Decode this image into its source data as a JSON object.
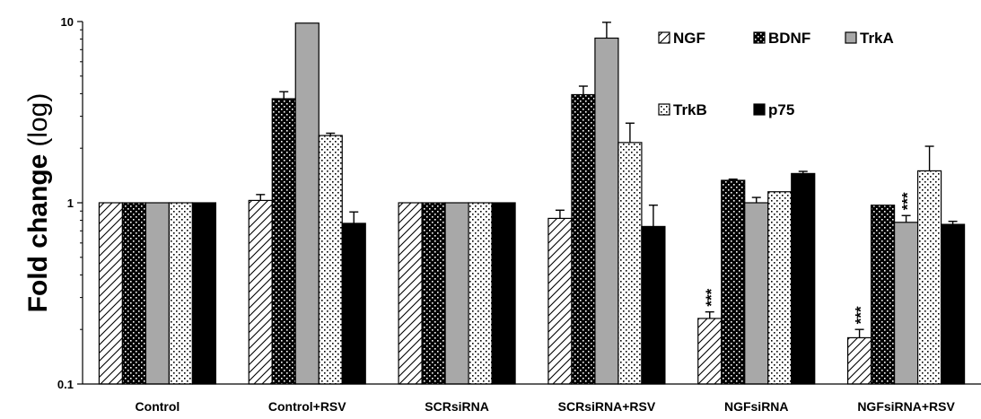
{
  "chart_data": {
    "type": "bar",
    "title": "",
    "xlabel": "",
    "ylabel": "Fold change",
    "ylabel_suffix": "(log)",
    "y_scale": "log",
    "ylim": [
      0.1,
      10
    ],
    "y_ticks": [
      "0.1",
      "1",
      "10"
    ],
    "grid": false,
    "legend_position": "top-right",
    "categories": [
      "Control",
      "Control+RSV",
      "SCRsiRNA",
      "SCRsiRNA+RSV",
      "NGFsiRNA",
      "NGFsiRNA+RSV"
    ],
    "series": [
      {
        "name": "NGF",
        "pattern": "hatch",
        "values": [
          1.0,
          1.03,
          1.0,
          0.82,
          0.23,
          0.18
        ],
        "errors": [
          0,
          0.08,
          0,
          0.09,
          0.02,
          0.02
        ]
      },
      {
        "name": "BDNF",
        "pattern": "black-dots",
        "values": [
          1.0,
          3.75,
          1.0,
          3.95,
          1.33,
          0.97
        ],
        "errors": [
          0,
          0.35,
          0,
          0.45,
          0.02,
          0.0
        ]
      },
      {
        "name": "TrkA",
        "pattern": "gray",
        "values": [
          1.0,
          9.8,
          1.0,
          8.1,
          1.0,
          0.78
        ],
        "errors": [
          0,
          0.0,
          0,
          1.8,
          0.07,
          0.07
        ]
      },
      {
        "name": "TrkB",
        "pattern": "dotted",
        "values": [
          1.0,
          2.35,
          1.0,
          2.15,
          1.15,
          1.5
        ],
        "errors": [
          0,
          0.07,
          0,
          0.6,
          0.0,
          0.55
        ]
      },
      {
        "name": "p75",
        "pattern": "black",
        "values": [
          1.0,
          0.77,
          1.0,
          0.74,
          1.45,
          0.76
        ],
        "errors": [
          0,
          0.12,
          0,
          0.23,
          0.04,
          0.03
        ]
      }
    ],
    "annotations": [
      {
        "text": "***",
        "category": "NGFsiRNA",
        "series": "NGF"
      },
      {
        "text": "***",
        "category": "NGFsiRNA+RSV",
        "series": "NGF"
      },
      {
        "text": "***",
        "category": "NGFsiRNA+RSV",
        "series": "TrkA"
      }
    ],
    "colors": {
      "bar_edge": "#000000",
      "gray_fill": "#a8a8a8",
      "black_fill": "#000000",
      "background": "#ffffff"
    }
  }
}
